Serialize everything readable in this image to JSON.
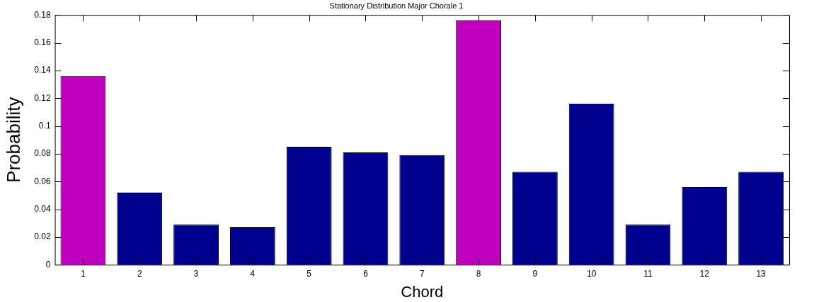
{
  "chart_data": {
    "type": "bar",
    "title": "Stationary Distribution Major Chorale 1",
    "xlabel": "Chord",
    "ylabel": "Probability",
    "categories": [
      "1",
      "2",
      "3",
      "4",
      "5",
      "6",
      "7",
      "8",
      "9",
      "10",
      "11",
      "12",
      "13"
    ],
    "values": [
      0.136,
      0.052,
      0.029,
      0.027,
      0.085,
      0.081,
      0.079,
      0.176,
      0.067,
      0.116,
      0.029,
      0.056,
      0.067
    ],
    "colors": [
      "#bf00bf",
      "#00008f",
      "#00008f",
      "#00008f",
      "#00008f",
      "#00008f",
      "#00008f",
      "#bf00bf",
      "#00008f",
      "#00008f",
      "#00008f",
      "#00008f",
      "#00008f"
    ],
    "ylim": [
      0,
      0.18
    ],
    "yticks": [
      0,
      0.02,
      0.04,
      0.06,
      0.08,
      0.1,
      0.12,
      0.14,
      0.16,
      0.18
    ],
    "grid": false,
    "legend": false
  }
}
